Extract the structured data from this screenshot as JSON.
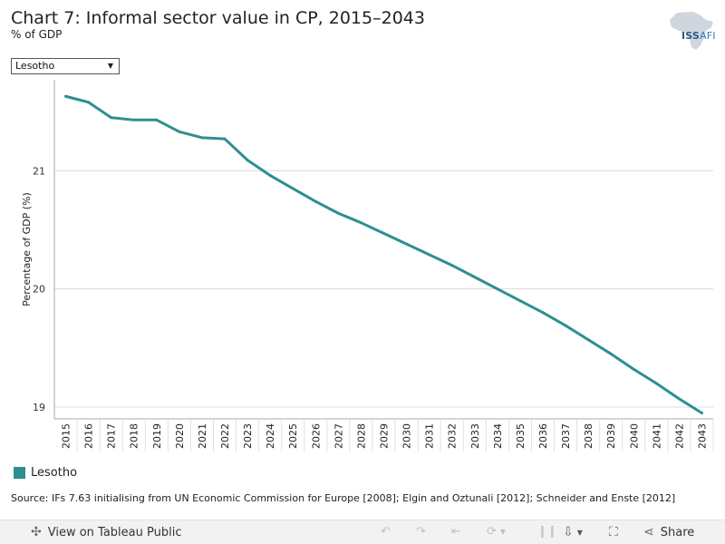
{
  "header": {
    "title": "Chart 7: Informal sector value in CP, 2015–2043",
    "subtitle": "% of GDP",
    "logo_main": "ISS",
    "logo_sub": "AFI"
  },
  "filter": {
    "selected": "Lesotho"
  },
  "chart_data": {
    "type": "line",
    "title": "Chart 7: Informal sector value in CP, 2015–2043",
    "subtitle": "% of GDP",
    "xlabel": "",
    "ylabel": "Percentage of GDP (%)",
    "ylim": [
      18.9,
      21.77
    ],
    "y_ticks": [
      19,
      20,
      21
    ],
    "grid": true,
    "categories": [
      "2015",
      "2016",
      "2017",
      "2018",
      "2019",
      "2020",
      "2021",
      "2022",
      "2023",
      "2024",
      "2025",
      "2026",
      "2027",
      "2028",
      "2029",
      "2030",
      "2031",
      "2032",
      "2033",
      "2034",
      "2035",
      "2036",
      "2037",
      "2038",
      "2039",
      "2040",
      "2041",
      "2042",
      "2043"
    ],
    "series": [
      {
        "name": "Lesotho",
        "color": "#2e8f8f",
        "values": [
          21.63,
          21.58,
          21.45,
          21.43,
          21.43,
          21.33,
          21.28,
          21.27,
          21.09,
          20.96,
          20.85,
          20.74,
          20.64,
          20.56,
          20.47,
          20.38,
          20.29,
          20.2,
          20.1,
          20.0,
          19.9,
          19.8,
          19.69,
          19.57,
          19.45,
          19.32,
          19.2,
          19.07,
          18.95
        ]
      }
    ]
  },
  "legend": {
    "label": "Lesotho",
    "color": "#2e8f8f"
  },
  "source": "Source: IFs 7.63 initialising from UN Economic Commission for Europe [2008]; Elgin and Oztunali [2012]; Schneider and Enste [2012]",
  "toolbar": {
    "view_label": "View on Tableau Public",
    "share_label": "Share"
  }
}
